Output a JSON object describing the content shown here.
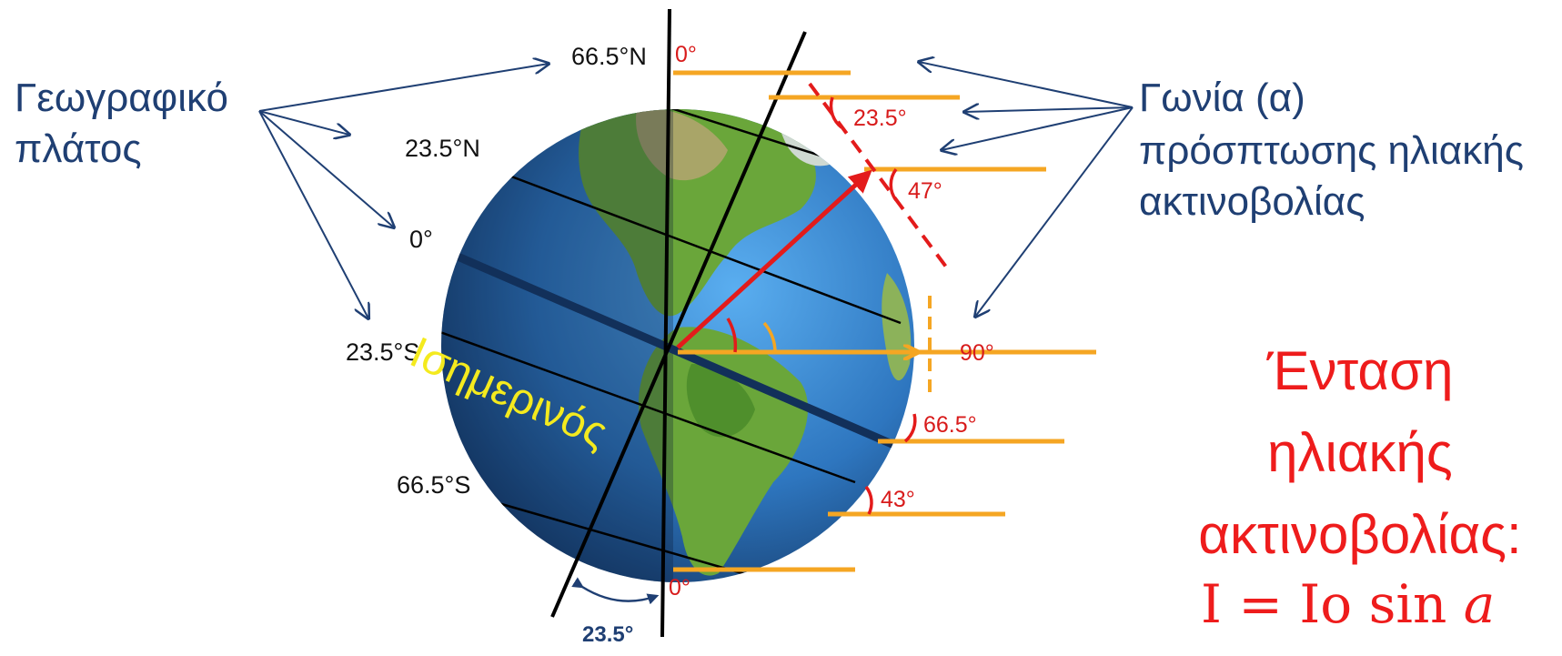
{
  "labels": {
    "latitude_title_line1": "Γεωγραφικό",
    "latitude_title_line2": "πλάτος",
    "angle_title_line1": "Γωνία (α)",
    "angle_title_line2": "πρόσπτωσης ηλιακής",
    "angle_title_line3": "ακτινοβολίας",
    "equator": "Ισημερινός",
    "intensity_line1": "Ένταση",
    "intensity_line2": "ηλιακής",
    "intensity_line3": "ακτινοβολίας:",
    "formula": "I = Io sin 𝑎",
    "tilt": "23.5°"
  },
  "latitudes": {
    "lat_66_5_n": "66.5°N",
    "lat_23_5_n": "23.5°N",
    "lat_0": "0°",
    "lat_23_5_s": "23.5°S",
    "lat_66_5_s": "66.5°S"
  },
  "angles": {
    "top": "0°",
    "a_23_5": "23.5°",
    "a_47": "47°",
    "a_90": "90°",
    "a_66_5": "66.5°",
    "a_43": "43°",
    "bottom": "0°"
  },
  "colors": {
    "ocean": "#2f7cc4",
    "land": "#6aa63a",
    "sun_rays": "#f5a623",
    "red": "#e31b1b",
    "title_blue": "#1f3f73",
    "equator_text": "#f4ea1e"
  }
}
